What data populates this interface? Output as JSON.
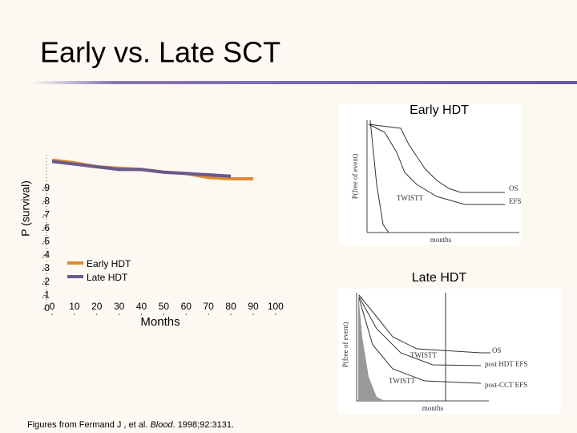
{
  "slide": {
    "title": "Early vs. Late SCT",
    "caption": {
      "prefix": "Figures from Fermand J , et al. ",
      "journal": "Blood",
      "suffix": ". 1998;92:3131."
    },
    "insets": [
      {
        "heading": "Early HDT",
        "y_label": "P(free of event)",
        "x_label": "months",
        "labels": [
          "OS",
          "EFS",
          "TWISTT"
        ]
      },
      {
        "heading": "Late HDT",
        "y_label": "P(free of event)",
        "x_label": "months",
        "labels": [
          "OS",
          "post HDT EFS",
          "post-CCT EFS",
          "TWISTT",
          "TWISTT"
        ]
      }
    ]
  },
  "chart_data": {
    "type": "line",
    "y_label": "P (survival)",
    "x_label": "Months",
    "x": [
      0,
      10,
      20,
      30,
      40,
      50,
      60,
      70,
      80,
      90
    ],
    "series": [
      {
        "name": "Early HDT",
        "color": "#e08a2c",
        "values": [
          1.11,
          1.09,
          1.06,
          1.05,
          1.04,
          1.02,
          1.01,
          0.98,
          0.97,
          0.97
        ]
      },
      {
        "name": "Late HDT",
        "color": "#6a5a8c",
        "values": [
          1.1,
          1.08,
          1.06,
          1.04,
          1.04,
          1.02,
          1.01,
          1.0,
          0.99,
          null
        ]
      }
    ],
    "xlim": [
      0,
      104
    ],
    "ylim": [
      0,
      1.15
    ],
    "xticks": [
      0,
      10,
      20,
      30,
      40,
      50,
      60,
      70,
      80,
      90,
      100
    ],
    "yticks": [
      0,
      {
        "value": 0.1,
        "label": ".1"
      },
      {
        "value": 0.2,
        "label": ".2"
      },
      {
        "value": 0.3,
        "label": ".3"
      },
      {
        "value": 0.4,
        "label": ".4"
      },
      {
        "value": 0.5,
        "label": ".5"
      },
      {
        "value": 0.6,
        "label": ".6"
      },
      {
        "value": 0.7,
        "label": ".7"
      },
      {
        "value": 0.8,
        "label": ".8"
      },
      {
        "value": 0.9,
        "label": ".9"
      }
    ],
    "legend": "lower-left"
  }
}
